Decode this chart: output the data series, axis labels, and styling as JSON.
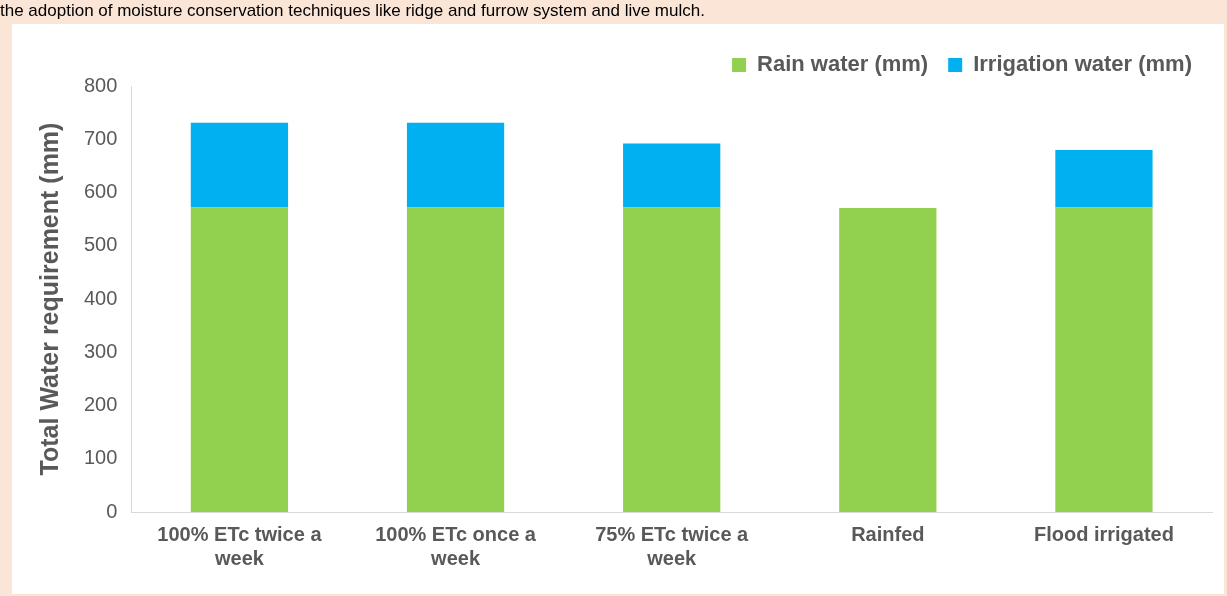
{
  "chart_data": {
    "type": "bar",
    "stacked": true,
    "ylabel": "Total Water requirement (mm)",
    "annotations": [
      "the adoption of moisture conservation techniques like ridge and furrow system and live mulch."
    ],
    "categories": [
      "100% ETc twice a week",
      "100% ETc once a week",
      "75% ETc twice a week",
      "Rainfed",
      "Flood irrigated"
    ],
    "series": [
      {
        "name": "Rain water (mm)",
        "color": "#92d050",
        "values": [
          572,
          572,
          572,
          571,
          572
        ]
      },
      {
        "name": "Irrigation water (mm)",
        "color": "#00b0f0",
        "values": [
          159,
          159,
          120,
          0,
          108
        ]
      }
    ],
    "ylim": [
      0,
      800
    ],
    "yticks": [
      0,
      100,
      200,
      300,
      400,
      500,
      600,
      700,
      800
    ],
    "grid": false,
    "legend": "top right"
  }
}
